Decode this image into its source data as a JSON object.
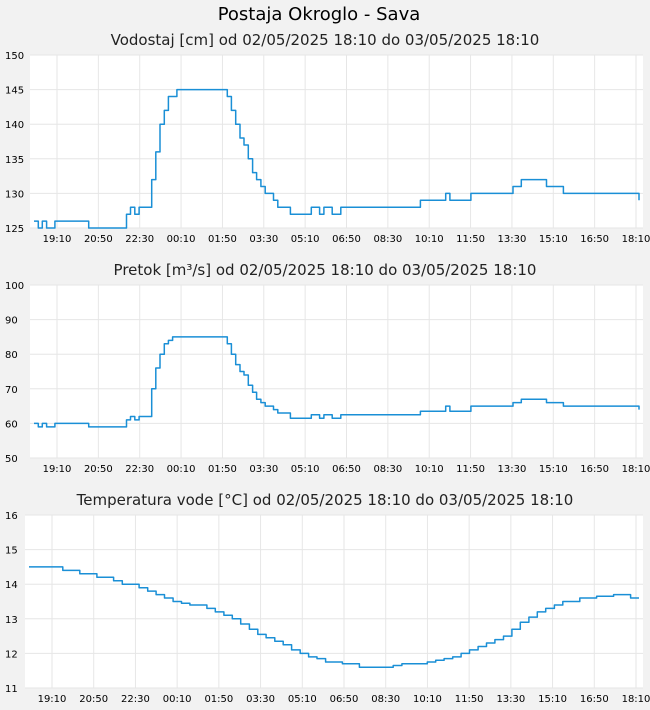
{
  "page": {
    "title": "Postaja Okroglo - Sava"
  },
  "chart_data": [
    {
      "type": "line",
      "title": "Vodostaj [cm] od 02/05/2025 18:10 do 03/05/2025 18:10",
      "xlabel": "",
      "ylabel": "",
      "ylim": [
        125,
        150
      ],
      "yticks": [
        125,
        130,
        135,
        140,
        145,
        150
      ],
      "xlim": [
        0,
        24
      ],
      "xtick_labels": [
        "19:10",
        "20:50",
        "22:30",
        "00:10",
        "01:50",
        "03:30",
        "05:10",
        "06:50",
        "08:30",
        "10:10",
        "11:50",
        "13:30",
        "15:10",
        "16:50",
        "18:10"
      ],
      "grid": true,
      "series": [
        {
          "color": "#1a8fd6",
          "x": [
            0,
            0.17,
            0.33,
            0.5,
            0.83,
            1.0,
            1.33,
            2.0,
            2.17,
            2.5,
            3.33,
            3.67,
            3.83,
            4.0,
            4.17,
            4.33,
            4.67,
            4.83,
            5.0,
            5.17,
            5.33,
            5.5,
            5.67,
            5.83,
            6.0,
            6.17,
            6.33,
            6.5,
            6.67,
            7.0,
            7.5,
            7.67,
            7.83,
            8.0,
            8.17,
            8.33,
            8.5,
            8.67,
            8.83,
            9.0,
            9.17,
            9.5,
            9.67,
            10.0,
            10.17,
            10.33,
            10.5,
            10.67,
            10.83,
            11.0,
            11.33,
            11.5,
            11.67,
            11.83,
            12.17,
            12.33,
            12.5,
            12.67,
            13.0,
            13.33,
            13.5,
            13.67,
            15.0,
            15.33,
            16.0,
            16.17,
            16.33,
            16.5,
            17.0,
            17.33,
            17.67,
            18.0,
            18.17,
            18.33,
            18.5,
            18.67,
            19.0,
            19.33,
            19.67,
            20.0,
            20.33,
            20.67,
            21.0,
            21.33,
            22.0,
            22.67,
            23.0,
            23.33,
            23.67,
            24.0
          ],
          "y": [
            126,
            125,
            126,
            125,
            126,
            126,
            126,
            126,
            125,
            125,
            125,
            127,
            128,
            127,
            128,
            128,
            132,
            136,
            140,
            142,
            144,
            144,
            145,
            145,
            145,
            145,
            145,
            145,
            145,
            145,
            145,
            144,
            142,
            140,
            138,
            137,
            135,
            133,
            132,
            131,
            130,
            129,
            128,
            128,
            127,
            127,
            127,
            127,
            127,
            128,
            127,
            128,
            128,
            127,
            128,
            128,
            128,
            128,
            128,
            128,
            128,
            128,
            128,
            129,
            129,
            129,
            130,
            129,
            129,
            130,
            130,
            130,
            130,
            130,
            130,
            130,
            131,
            132,
            132,
            132,
            131,
            131,
            130,
            130,
            130,
            130,
            130,
            130,
            130,
            129
          ]
        }
      ]
    },
    {
      "type": "line",
      "title": "Pretok [m³/s] od 02/05/2025 18:10 do 03/05/2025 18:10",
      "xlabel": "",
      "ylabel": "",
      "ylim": [
        50,
        100
      ],
      "yticks": [
        50,
        60,
        70,
        80,
        90,
        100
      ],
      "xlim": [
        0,
        24
      ],
      "xtick_labels": [
        "19:10",
        "20:50",
        "22:30",
        "00:10",
        "01:50",
        "03:30",
        "05:10",
        "06:50",
        "08:30",
        "10:10",
        "11:50",
        "13:30",
        "15:10",
        "16:50",
        "18:10"
      ],
      "grid": true,
      "series": [
        {
          "color": "#1a8fd6",
          "x": [
            0,
            0.17,
            0.33,
            0.5,
            0.83,
            1.0,
            1.33,
            2.0,
            2.17,
            2.5,
            3.33,
            3.67,
            3.83,
            4.0,
            4.17,
            4.33,
            4.67,
            4.83,
            5.0,
            5.17,
            5.33,
            5.5,
            5.67,
            5.83,
            6.0,
            6.17,
            6.33,
            6.5,
            6.67,
            7.0,
            7.5,
            7.67,
            7.83,
            8.0,
            8.17,
            8.33,
            8.5,
            8.67,
            8.83,
            9.0,
            9.17,
            9.5,
            9.67,
            10.0,
            10.17,
            10.33,
            10.5,
            10.67,
            10.83,
            11.0,
            11.33,
            11.5,
            11.67,
            11.83,
            12.17,
            12.33,
            12.5,
            12.67,
            13.0,
            13.33,
            13.5,
            13.67,
            15.0,
            15.33,
            16.0,
            16.17,
            16.33,
            16.5,
            17.0,
            17.33,
            17.67,
            18.0,
            18.17,
            18.33,
            18.5,
            18.67,
            19.0,
            19.33,
            19.67,
            20.0,
            20.33,
            20.67,
            21.0,
            21.33,
            22.0,
            22.67,
            23.0,
            23.33,
            23.67,
            24.0
          ],
          "y": [
            60,
            59,
            60,
            59,
            60,
            60,
            60,
            60,
            59,
            59,
            59,
            61,
            62,
            61,
            62,
            62,
            70,
            76,
            80,
            83,
            84,
            85,
            85,
            85,
            85,
            85,
            85,
            85,
            85,
            85,
            85,
            83,
            80,
            77,
            75,
            74,
            71,
            69,
            67,
            66,
            65,
            64,
            63,
            63,
            61.5,
            61.5,
            61.5,
            61.5,
            61.5,
            62.5,
            61.5,
            62.5,
            62.5,
            61.5,
            62.5,
            62.5,
            62.5,
            62.5,
            62.5,
            62.5,
            62.5,
            62.5,
            62.5,
            63.5,
            63.5,
            63.5,
            65,
            63.5,
            63.5,
            65,
            65,
            65,
            65,
            65,
            65,
            65,
            66,
            67,
            67,
            67,
            66,
            66,
            65,
            65,
            65,
            65,
            65,
            65,
            65,
            64
          ]
        }
      ]
    },
    {
      "type": "line",
      "title": "Temperatura vode [°C] od 02/05/2025 18:10 do 03/05/2025 18:10",
      "xlabel": "",
      "ylabel": "",
      "ylim": [
        11,
        16
      ],
      "yticks": [
        11,
        12,
        13,
        14,
        15,
        16
      ],
      "xlim": [
        0,
        24
      ],
      "xtick_labels": [
        "19:10",
        "20:50",
        "22:30",
        "00:10",
        "01:50",
        "03:30",
        "05:10",
        "06:50",
        "08:30",
        "10:10",
        "11:50",
        "13:30",
        "15:10",
        "16:50",
        "18:10"
      ],
      "grid": true,
      "series": [
        {
          "color": "#1a8fd6",
          "x": [
            0,
            0.67,
            1.33,
            2.0,
            2.67,
            3.33,
            3.67,
            4.0,
            4.33,
            4.67,
            5.0,
            5.33,
            5.67,
            6.0,
            6.33,
            6.67,
            7.0,
            7.33,
            7.67,
            8.0,
            8.33,
            8.67,
            9.0,
            9.33,
            9.67,
            10.0,
            10.33,
            10.67,
            11.0,
            11.33,
            11.67,
            12.33,
            13.0,
            13.67,
            14.33,
            14.67,
            15.0,
            15.33,
            15.67,
            16.0,
            16.33,
            16.67,
            17.0,
            17.33,
            17.67,
            18.0,
            18.33,
            18.67,
            19.0,
            19.33,
            19.67,
            20.0,
            20.33,
            20.67,
            21.0,
            21.67,
            22.33,
            23.0,
            23.67,
            24.0
          ],
          "y": [
            14.5,
            14.5,
            14.4,
            14.3,
            14.2,
            14.1,
            14.0,
            14.0,
            13.9,
            13.8,
            13.7,
            13.6,
            13.5,
            13.45,
            13.4,
            13.4,
            13.3,
            13.2,
            13.1,
            13.0,
            12.85,
            12.7,
            12.55,
            12.45,
            12.35,
            12.25,
            12.1,
            12.0,
            11.9,
            11.85,
            11.75,
            11.7,
            11.6,
            11.6,
            11.65,
            11.7,
            11.7,
            11.7,
            11.75,
            11.8,
            11.85,
            11.9,
            12.0,
            12.1,
            12.2,
            12.3,
            12.4,
            12.5,
            12.7,
            12.9,
            13.05,
            13.2,
            13.3,
            13.4,
            13.5,
            13.6,
            13.65,
            13.7,
            13.6,
            13.6
          ]
        }
      ]
    }
  ]
}
